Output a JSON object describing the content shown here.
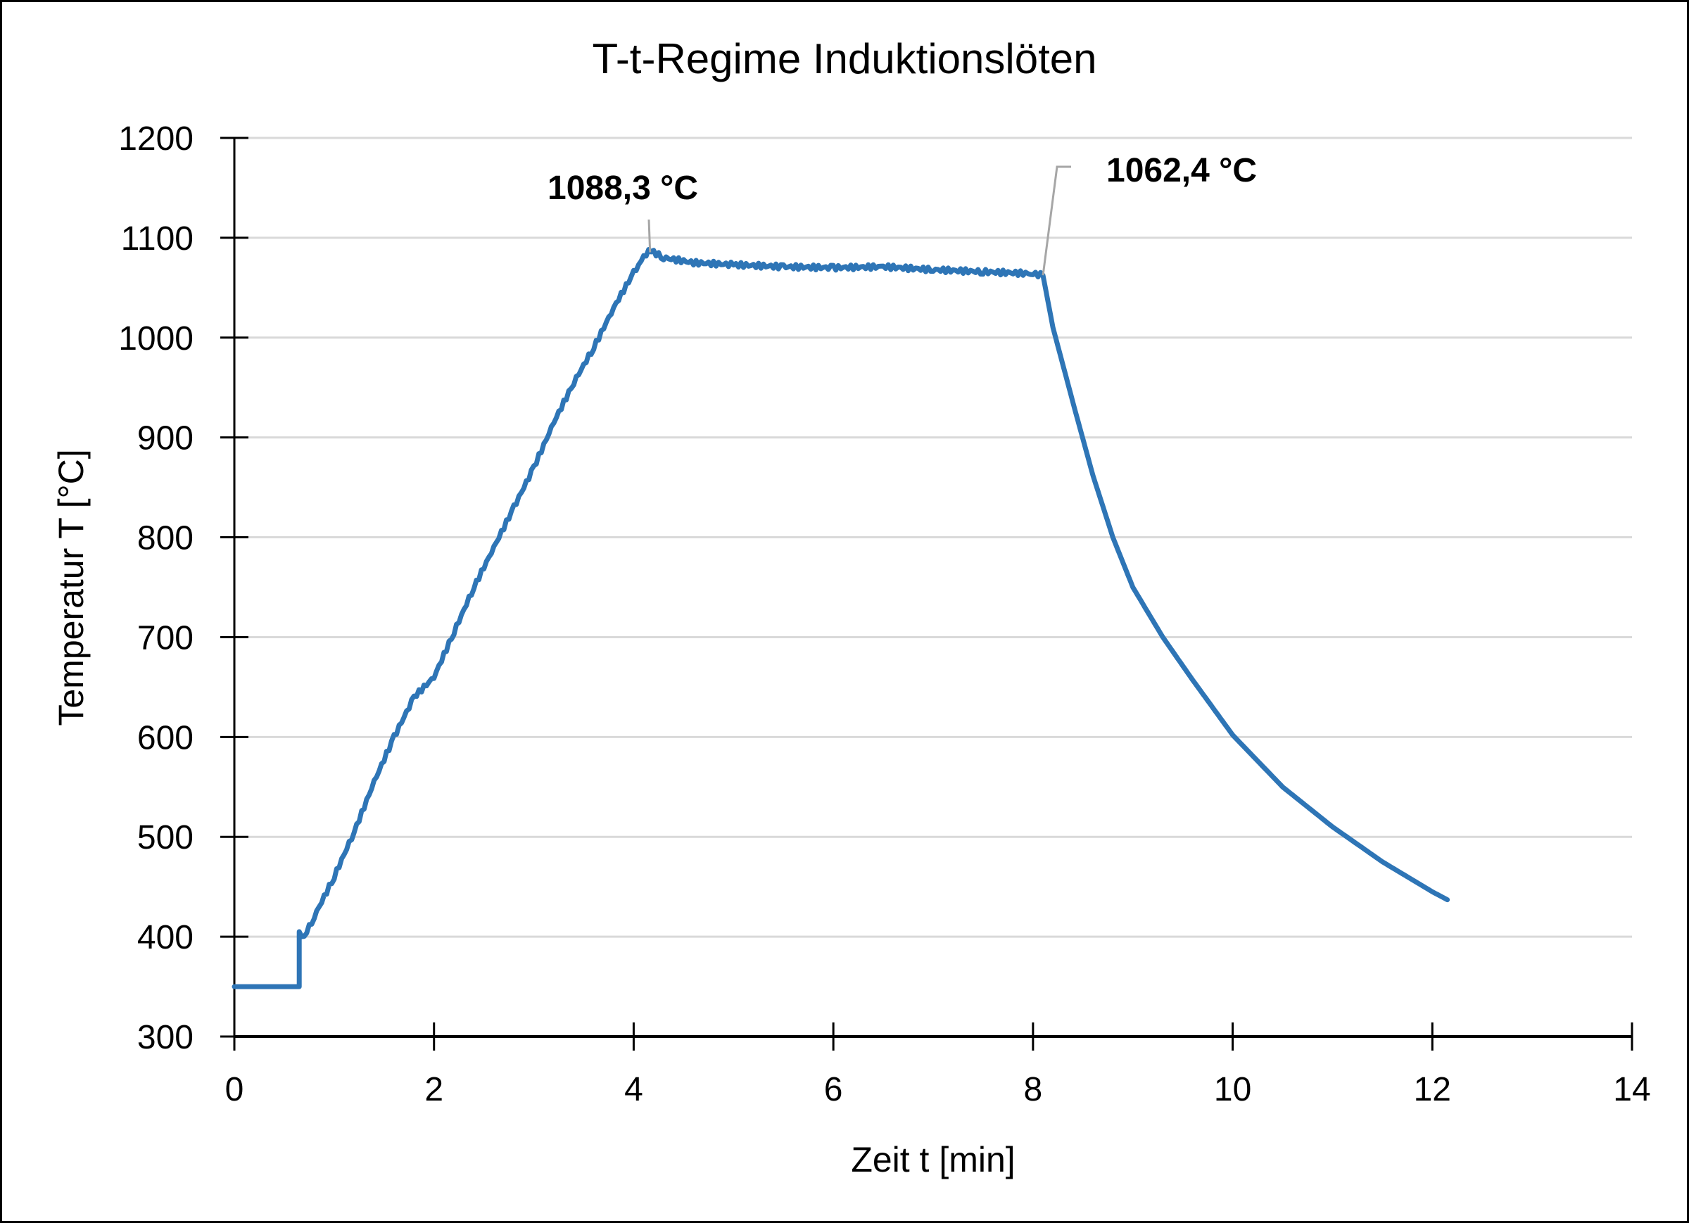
{
  "chart_data": {
    "type": "line",
    "title": "T-t-Regime Induktionslöten",
    "xlabel": "Zeit t [min]",
    "ylabel": "Temperatur T [°C]",
    "xlim": [
      0,
      14
    ],
    "ylim": [
      300,
      1200
    ],
    "xticks": [
      0,
      2,
      4,
      6,
      8,
      10,
      12,
      14
    ],
    "yticks": [
      300,
      400,
      500,
      600,
      700,
      800,
      900,
      1000,
      1100,
      1200
    ],
    "grid": "horizontal",
    "legend": "none",
    "series": [
      {
        "name": "Temperatur",
        "color": "#2E75B6",
        "x": [
          0,
          0.65,
          0.65,
          0.7,
          0.8,
          1.0,
          1.2,
          1.4,
          1.6,
          1.8,
          2.0,
          2.2,
          2.4,
          2.6,
          2.8,
          3.0,
          3.2,
          3.4,
          3.6,
          3.8,
          4.0,
          4.1,
          4.15,
          4.3,
          4.6,
          5.0,
          5.5,
          6.0,
          6.5,
          7.0,
          7.5,
          8.0,
          8.1,
          8.2,
          8.4,
          8.6,
          8.8,
          9.0,
          9.3,
          9.6,
          10.0,
          10.5,
          11.0,
          11.5,
          12.0,
          12.15
        ],
        "y": [
          350,
          350,
          405,
          400,
          420,
          460,
          505,
          555,
          600,
          640,
          660,
          705,
          750,
          790,
          830,
          870,
          915,
          955,
          990,
          1030,
          1065,
          1080,
          1088.3,
          1080,
          1075,
          1073,
          1071,
          1070,
          1071,
          1068,
          1066,
          1064,
          1062.4,
          1010,
          935,
          862,
          800,
          750,
          700,
          657,
          602,
          550,
          510,
          475,
          445,
          437
        ]
      }
    ],
    "annotations": [
      {
        "text": "1088,3 °C",
        "x": 4.15,
        "y": 1088.3
      },
      {
        "text": "1062,4 °C",
        "x": 8.1,
        "y": 1062.4
      }
    ]
  }
}
